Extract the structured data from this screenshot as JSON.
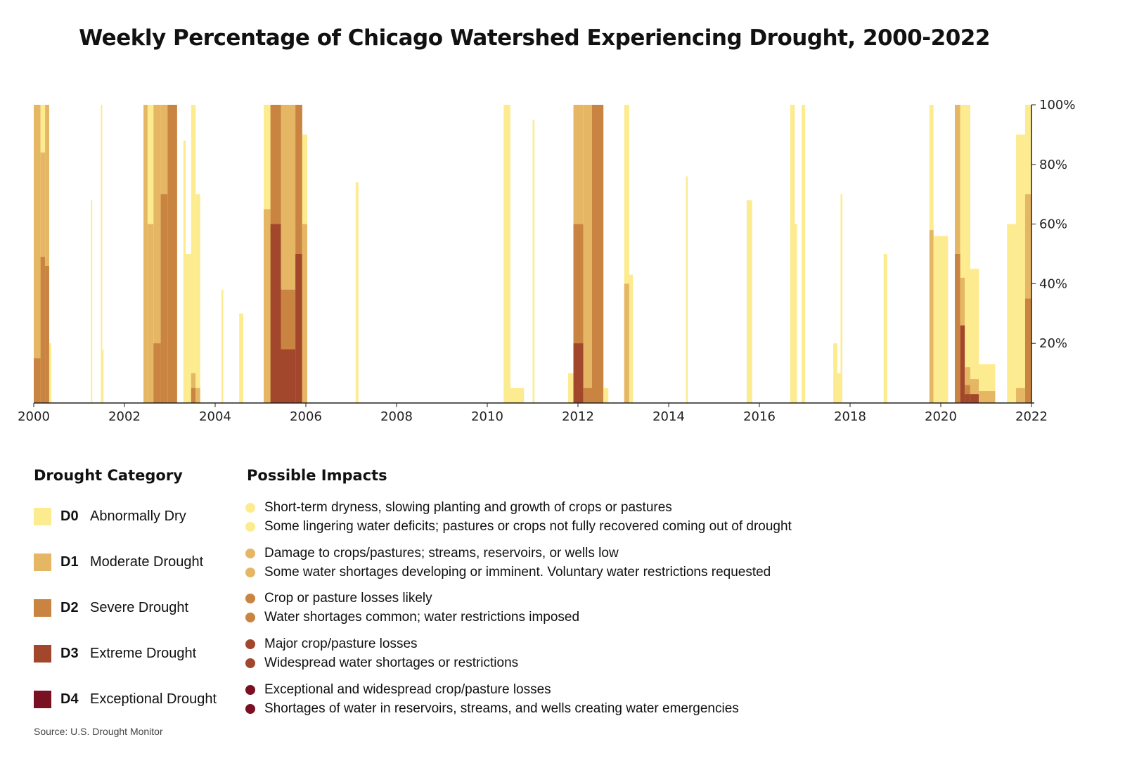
{
  "title": "Weekly Percentage of Chicago Watershed Experiencing Drought, 2000-2022",
  "chart_data": {
    "type": "area",
    "title": "Weekly Percentage of Chicago Watershed Experiencing Drought, 2000-2022",
    "xlim": [
      2000,
      2022
    ],
    "ylim": [
      0,
      100
    ],
    "x_ticks": [
      "2000",
      "2002",
      "2004",
      "2006",
      "2008",
      "2010",
      "2012",
      "2014",
      "2016",
      "2018",
      "2020",
      "2022"
    ],
    "y_ticks": [
      "20%",
      "40%",
      "60%",
      "80%",
      "100%"
    ],
    "y_axis_side": "right",
    "grid": false,
    "categories": [
      "D0",
      "D1",
      "D2",
      "D3",
      "D4"
    ],
    "colors": {
      "D0": "#FDEB8F",
      "D1": "#E5B765",
      "D2": "#C98442",
      "D3": "#A3472C",
      "D4": "#7A1122"
    },
    "episodes_note_units": "start/end in years; values = percent of area at or above each category",
    "episodes": [
      {
        "start": 2000.0,
        "end": 2000.15,
        "v": [
          100,
          100,
          15,
          0,
          0
        ]
      },
      {
        "start": 2000.15,
        "end": 2000.25,
        "v": [
          100,
          84,
          49,
          0,
          0
        ]
      },
      {
        "start": 2000.25,
        "end": 2000.34,
        "v": [
          100,
          100,
          46,
          0,
          0
        ]
      },
      {
        "start": 2000.34,
        "end": 2000.39,
        "v": [
          20,
          0,
          0,
          0,
          0
        ]
      },
      {
        "start": 2001.26,
        "end": 2001.29,
        "v": [
          68,
          0,
          0,
          0,
          0
        ]
      },
      {
        "start": 2001.48,
        "end": 2001.51,
        "v": [
          100,
          0,
          0,
          0,
          0
        ]
      },
      {
        "start": 2001.51,
        "end": 2001.54,
        "v": [
          18,
          0,
          0,
          0,
          0
        ]
      },
      {
        "start": 2002.42,
        "end": 2002.51,
        "v": [
          100,
          100,
          0,
          0,
          0
        ]
      },
      {
        "start": 2002.51,
        "end": 2002.64,
        "v": [
          100,
          60,
          0,
          0,
          0
        ]
      },
      {
        "start": 2002.64,
        "end": 2002.8,
        "v": [
          100,
          100,
          20,
          0,
          0
        ]
      },
      {
        "start": 2002.8,
        "end": 2002.95,
        "v": [
          100,
          100,
          70,
          0,
          0
        ]
      },
      {
        "start": 2002.95,
        "end": 2003.16,
        "v": [
          100,
          100,
          100,
          0,
          0
        ]
      },
      {
        "start": 2003.3,
        "end": 2003.35,
        "v": [
          88,
          0,
          0,
          0,
          0
        ]
      },
      {
        "start": 2003.35,
        "end": 2003.47,
        "v": [
          50,
          0,
          0,
          0,
          0
        ]
      },
      {
        "start": 2003.47,
        "end": 2003.57,
        "v": [
          100,
          10,
          5,
          0,
          0
        ]
      },
      {
        "start": 2003.57,
        "end": 2003.67,
        "v": [
          70,
          5,
          0,
          0,
          0
        ]
      },
      {
        "start": 2004.14,
        "end": 2004.18,
        "v": [
          38,
          0,
          0,
          0,
          0
        ]
      },
      {
        "start": 2004.53,
        "end": 2004.62,
        "v": [
          30,
          0,
          0,
          0,
          0
        ]
      },
      {
        "start": 2005.07,
        "end": 2005.22,
        "v": [
          100,
          65,
          0,
          0,
          0
        ]
      },
      {
        "start": 2005.22,
        "end": 2005.45,
        "v": [
          100,
          100,
          100,
          60,
          0
        ]
      },
      {
        "start": 2005.45,
        "end": 2005.77,
        "v": [
          100,
          100,
          38,
          18,
          0
        ]
      },
      {
        "start": 2005.77,
        "end": 2005.92,
        "v": [
          100,
          100,
          100,
          50,
          0
        ]
      },
      {
        "start": 2005.92,
        "end": 2006.03,
        "v": [
          90,
          60,
          0,
          0,
          0
        ]
      },
      {
        "start": 2007.1,
        "end": 2007.16,
        "v": [
          74,
          0,
          0,
          0,
          0
        ]
      },
      {
        "start": 2010.36,
        "end": 2010.51,
        "v": [
          100,
          0,
          0,
          0,
          0
        ]
      },
      {
        "start": 2010.51,
        "end": 2010.81,
        "v": [
          5,
          0,
          0,
          0,
          0
        ]
      },
      {
        "start": 2011.0,
        "end": 2011.04,
        "v": [
          95,
          0,
          0,
          0,
          0
        ]
      },
      {
        "start": 2011.78,
        "end": 2011.9,
        "v": [
          10,
          0,
          0,
          0,
          0
        ]
      },
      {
        "start": 2011.9,
        "end": 2012.12,
        "v": [
          100,
          100,
          60,
          20,
          0
        ]
      },
      {
        "start": 2012.12,
        "end": 2012.31,
        "v": [
          100,
          100,
          5,
          0,
          0
        ]
      },
      {
        "start": 2012.31,
        "end": 2012.56,
        "v": [
          100,
          100,
          100,
          0,
          0
        ]
      },
      {
        "start": 2012.56,
        "end": 2012.67,
        "v": [
          5,
          0,
          0,
          0,
          0
        ]
      },
      {
        "start": 2013.02,
        "end": 2013.13,
        "v": [
          100,
          40,
          0,
          0,
          0
        ]
      },
      {
        "start": 2013.13,
        "end": 2013.21,
        "v": [
          43,
          0,
          0,
          0,
          0
        ]
      },
      {
        "start": 2014.38,
        "end": 2014.42,
        "v": [
          76,
          0,
          0,
          0,
          0
        ]
      },
      {
        "start": 2015.72,
        "end": 2015.84,
        "v": [
          68,
          0,
          0,
          0,
          0
        ]
      },
      {
        "start": 2016.68,
        "end": 2016.78,
        "v": [
          100,
          0,
          0,
          0,
          0
        ]
      },
      {
        "start": 2016.78,
        "end": 2016.83,
        "v": [
          60,
          0,
          0,
          0,
          0
        ]
      },
      {
        "start": 2016.93,
        "end": 2017.01,
        "v": [
          100,
          0,
          0,
          0,
          0
        ]
      },
      {
        "start": 2017.63,
        "end": 2017.72,
        "v": [
          20,
          0,
          0,
          0,
          0
        ]
      },
      {
        "start": 2017.72,
        "end": 2017.79,
        "v": [
          10,
          0,
          0,
          0,
          0
        ]
      },
      {
        "start": 2017.79,
        "end": 2017.83,
        "v": [
          70,
          0,
          0,
          0,
          0
        ]
      },
      {
        "start": 2018.74,
        "end": 2018.82,
        "v": [
          50,
          0,
          0,
          0,
          0
        ]
      },
      {
        "start": 2019.75,
        "end": 2019.84,
        "v": [
          100,
          58,
          0,
          0,
          0
        ]
      },
      {
        "start": 2019.84,
        "end": 2020.16,
        "v": [
          56,
          0,
          0,
          0,
          0
        ]
      },
      {
        "start": 2020.31,
        "end": 2020.43,
        "v": [
          100,
          100,
          50,
          0,
          0
        ]
      },
      {
        "start": 2020.43,
        "end": 2020.53,
        "v": [
          100,
          42,
          26,
          26,
          0
        ]
      },
      {
        "start": 2020.53,
        "end": 2020.65,
        "v": [
          100,
          12,
          6,
          3,
          0
        ]
      },
      {
        "start": 2020.65,
        "end": 2020.84,
        "v": [
          45,
          8,
          3,
          3,
          0
        ]
      },
      {
        "start": 2020.84,
        "end": 2021.2,
        "v": [
          13,
          4,
          0,
          0,
          0
        ]
      },
      {
        "start": 2021.46,
        "end": 2021.66,
        "v": [
          60,
          0,
          0,
          0,
          0
        ]
      },
      {
        "start": 2021.66,
        "end": 2021.86,
        "v": [
          90,
          5,
          0,
          0,
          0
        ]
      },
      {
        "start": 2021.86,
        "end": 2022.0,
        "v": [
          100,
          70,
          35,
          0,
          0
        ]
      }
    ]
  },
  "legend": {
    "heading": "Drought Category",
    "items": [
      {
        "code": "D0",
        "label": "Abnormally Dry",
        "color": "#FDEB8F"
      },
      {
        "code": "D1",
        "label": "Moderate Drought",
        "color": "#E5B765"
      },
      {
        "code": "D2",
        "label": "Severe Drought",
        "color": "#C98442"
      },
      {
        "code": "D3",
        "label": "Extreme Drought",
        "color": "#A3472C"
      },
      {
        "code": "D4",
        "label": "Exceptional Drought",
        "color": "#7A1122"
      }
    ]
  },
  "impacts": {
    "heading": "Possible Impacts",
    "groups": [
      {
        "color": "#FDEB8F",
        "lines": [
          "Short-term dryness, slowing planting and growth of crops or pastures",
          "Some lingering water deficits; pastures or crops not fully recovered coming out of drought"
        ]
      },
      {
        "color": "#E5B765",
        "lines": [
          "Damage to crops/pastures; streams, reservoirs, or wells low",
          "Some water shortages developing or imminent. Voluntary water restrictions requested"
        ]
      },
      {
        "color": "#C98442",
        "lines": [
          "Crop or pasture losses likely",
          "Water shortages common; water restrictions imposed"
        ]
      },
      {
        "color": "#A3472C",
        "lines": [
          "Major crop/pasture losses",
          "Widespread water shortages or restrictions"
        ]
      },
      {
        "color": "#7A1122",
        "lines": [
          "Exceptional and widespread crop/pasture losses",
          "Shortages of water in reservoirs, streams, and wells creating water emergencies"
        ]
      }
    ]
  },
  "source": "Source: U.S. Drought Monitor"
}
